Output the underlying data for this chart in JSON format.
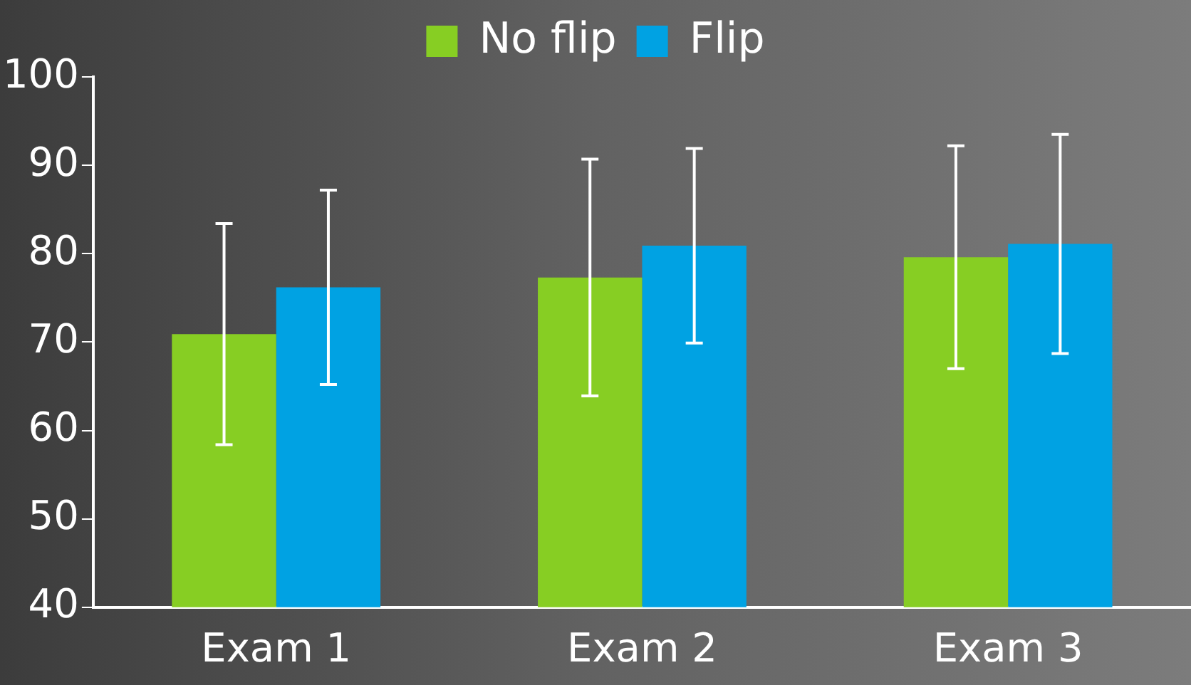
{
  "chart_data": {
    "type": "bar",
    "categories": [
      "Exam 1",
      "Exam 2",
      "Exam 3"
    ],
    "series": [
      {
        "name": "No flip",
        "color": "#87ce23",
        "values": [
          70.9,
          77.3,
          79.6
        ],
        "errors": [
          12.5,
          13.4,
          12.6
        ]
      },
      {
        "name": "Flip",
        "color": "#00a2e3",
        "values": [
          76.2,
          80.9,
          81.1
        ],
        "errors": [
          11,
          11,
          12.4
        ]
      }
    ],
    "ylim": [
      40,
      100
    ],
    "yticks": [
      40,
      50,
      60,
      70,
      80,
      90,
      100
    ],
    "grid": false,
    "legend": "top"
  }
}
